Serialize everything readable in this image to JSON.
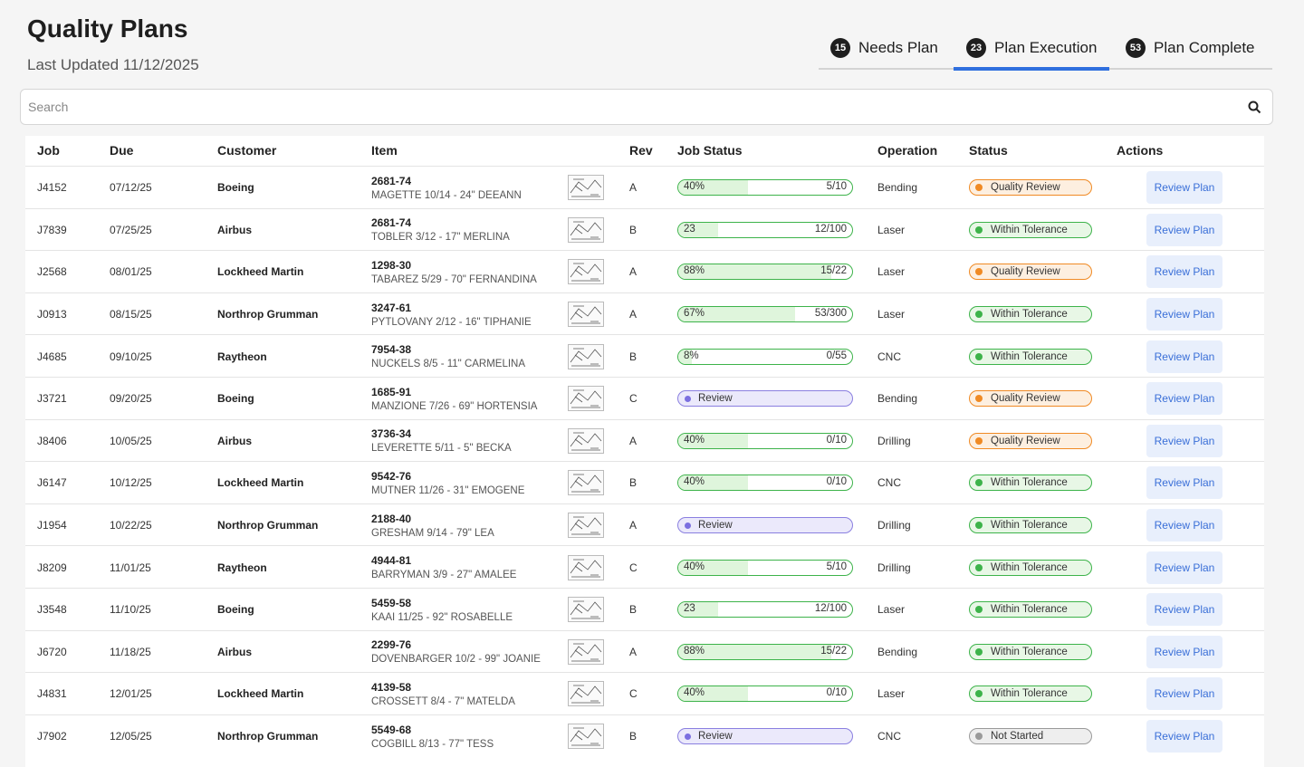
{
  "header": {
    "title": "Quality Plans",
    "subtitle": "Last Updated 11/12/2025"
  },
  "tabs": [
    {
      "count": "15",
      "label": "Needs Plan"
    },
    {
      "count": "23",
      "label": "Plan Execution",
      "active": true
    },
    {
      "count": "53",
      "label": "Plan Complete"
    }
  ],
  "search": {
    "placeholder": "Search"
  },
  "table": {
    "columns": [
      "Job",
      "Due",
      "Customer",
      "Item",
      "Rev",
      "Job Status",
      "Operation",
      "Status",
      "Actions"
    ],
    "rows": [
      {
        "job": "J4152",
        "due": "07/12/25",
        "customer": "Boeing",
        "item": "2681-74",
        "desc": "MAGETTE 10/14 - 24\" DEEANN",
        "rev": "A",
        "progress": {
          "value": 40,
          "label": "40%",
          "count": "5/10"
        },
        "operation": "Bending",
        "status": {
          "label": "Quality Review",
          "color": "#f08a24",
          "bg": "#fdefe0"
        },
        "action": "Review Plan"
      },
      {
        "job": "J7839",
        "due": "07/25/25",
        "customer": "Airbus",
        "item": "2681-74",
        "desc": "TOBLER 3/12 - 17\" MERLINA",
        "rev": "B",
        "progress": {
          "value": 23,
          "label": "23",
          "count": "12/100"
        },
        "operation": "Laser",
        "status": {
          "label": "Within Tolerance",
          "color": "#3db34a",
          "bg": "#e8f7e6"
        },
        "action": "Review Plan"
      },
      {
        "job": "J2568",
        "due": "08/01/25",
        "customer": "Lockheed Martin",
        "item": "1298-30",
        "desc": "TABAREZ 5/29 - 70\" FERNANDINA",
        "rev": "A",
        "progress": {
          "value": 88,
          "label": "88%",
          "count": "15/22"
        },
        "operation": "Laser",
        "status": {
          "label": "Quality Review",
          "color": "#f08a24",
          "bg": "#fdefe0"
        },
        "action": "Review Plan"
      },
      {
        "job": "J0913",
        "due": "08/15/25",
        "customer": "Northrop Grumman",
        "item": "3247-61",
        "desc": "PYTLOVANY 2/12 - 16\" TIPHANIE",
        "rev": "A",
        "progress": {
          "value": 67,
          "label": "67%",
          "count": "53/300"
        },
        "operation": "Laser",
        "status": {
          "label": "Within Tolerance",
          "color": "#3db34a",
          "bg": "#e8f7e6"
        },
        "action": "Review Plan"
      },
      {
        "job": "J4685",
        "due": "09/10/25",
        "customer": "Raytheon",
        "item": "7954-38",
        "desc": "NUCKELS 8/5 - 11\" CARMELINA",
        "rev": "B",
        "progress": {
          "value": 8,
          "label": "8%",
          "count": "0/55"
        },
        "operation": "CNC",
        "status": {
          "label": "Within Tolerance",
          "color": "#3db34a",
          "bg": "#e8f7e6"
        },
        "action": "Review Plan"
      },
      {
        "job": "J3721",
        "due": "09/20/25",
        "customer": "Boeing",
        "item": "1685-91",
        "desc": "MANZIONE 7/26 - 69\" HORTENSIA",
        "rev": "C",
        "review": "Review",
        "operation": "Bending",
        "status": {
          "label": "Quality Review",
          "color": "#f08a24",
          "bg": "#fdefe0"
        },
        "action": "Review Plan"
      },
      {
        "job": "J8406",
        "due": "10/05/25",
        "customer": "Airbus",
        "item": "3736-34",
        "desc": "LEVERETTE 5/11 - 5\" BECKA",
        "rev": "A",
        "progress": {
          "value": 40,
          "label": "40%",
          "count": "0/10"
        },
        "operation": "Drilling",
        "status": {
          "label": "Quality Review",
          "color": "#f08a24",
          "bg": "#fdefe0"
        },
        "action": "Review Plan"
      },
      {
        "job": "J6147",
        "due": "10/12/25",
        "customer": "Lockheed Martin",
        "item": "9542-76",
        "desc": "MUTNER 11/26 - 31\" EMOGENE",
        "rev": "B",
        "progress": {
          "value": 40,
          "label": "40%",
          "count": "0/10"
        },
        "operation": "CNC",
        "status": {
          "label": "Within Tolerance",
          "color": "#3db34a",
          "bg": "#e8f7e6"
        },
        "action": "Review Plan"
      },
      {
        "job": "J1954",
        "due": "10/22/25",
        "customer": "Northrop Grumman",
        "item": "2188-40",
        "desc": "GRESHAM 9/14 - 79\" LEA",
        "rev": "A",
        "review": "Review",
        "operation": "Drilling",
        "status": {
          "label": "Within Tolerance",
          "color": "#3db34a",
          "bg": "#e8f7e6"
        },
        "action": "Review Plan"
      },
      {
        "job": "J8209",
        "due": "11/01/25",
        "customer": "Raytheon",
        "item": "4944-81",
        "desc": "BARRYMAN 3/9 - 27\" AMALEE",
        "rev": "C",
        "progress": {
          "value": 40,
          "label": "40%",
          "count": "5/10"
        },
        "operation": "Drilling",
        "status": {
          "label": "Within Tolerance",
          "color": "#3db34a",
          "bg": "#e8f7e6"
        },
        "action": "Review Plan"
      },
      {
        "job": "J3548",
        "due": "11/10/25",
        "customer": "Boeing",
        "item": "5459-58",
        "desc": "KAAI 11/25 - 92\" ROSABELLE",
        "rev": "B",
        "progress": {
          "value": 23,
          "label": "23",
          "count": "12/100"
        },
        "operation": "Laser",
        "status": {
          "label": "Within Tolerance",
          "color": "#3db34a",
          "bg": "#e8f7e6"
        },
        "action": "Review Plan"
      },
      {
        "job": "J6720",
        "due": "11/18/25",
        "customer": "Airbus",
        "item": "2299-76",
        "desc": "DOVENBARGER 10/2 - 99\" JOANIE",
        "rev": "A",
        "progress": {
          "value": 88,
          "label": "88%",
          "count": "15/22"
        },
        "operation": "Bending",
        "status": {
          "label": "Within Tolerance",
          "color": "#3db34a",
          "bg": "#e8f7e6"
        },
        "action": "Review Plan"
      },
      {
        "job": "J4831",
        "due": "12/01/25",
        "customer": "Lockheed Martin",
        "item": "4139-58",
        "desc": "CROSSETT 8/4 - 7\" MATELDA",
        "rev": "C",
        "progress": {
          "value": 40,
          "label": "40%",
          "count": "0/10"
        },
        "operation": "Laser",
        "status": {
          "label": "Within Tolerance",
          "color": "#3db34a",
          "bg": "#e8f7e6"
        },
        "action": "Review Plan"
      },
      {
        "job": "J7902",
        "due": "12/05/25",
        "customer": "Northrop Grumman",
        "item": "5549-68",
        "desc": "COGBILL 8/13 - 77\" TESS",
        "rev": "B",
        "review": "Review",
        "operation": "CNC",
        "status": {
          "label": "Not Started",
          "color": "#9a9a9a",
          "bg": "#eeeeee"
        },
        "action": "Review Plan"
      }
    ]
  }
}
